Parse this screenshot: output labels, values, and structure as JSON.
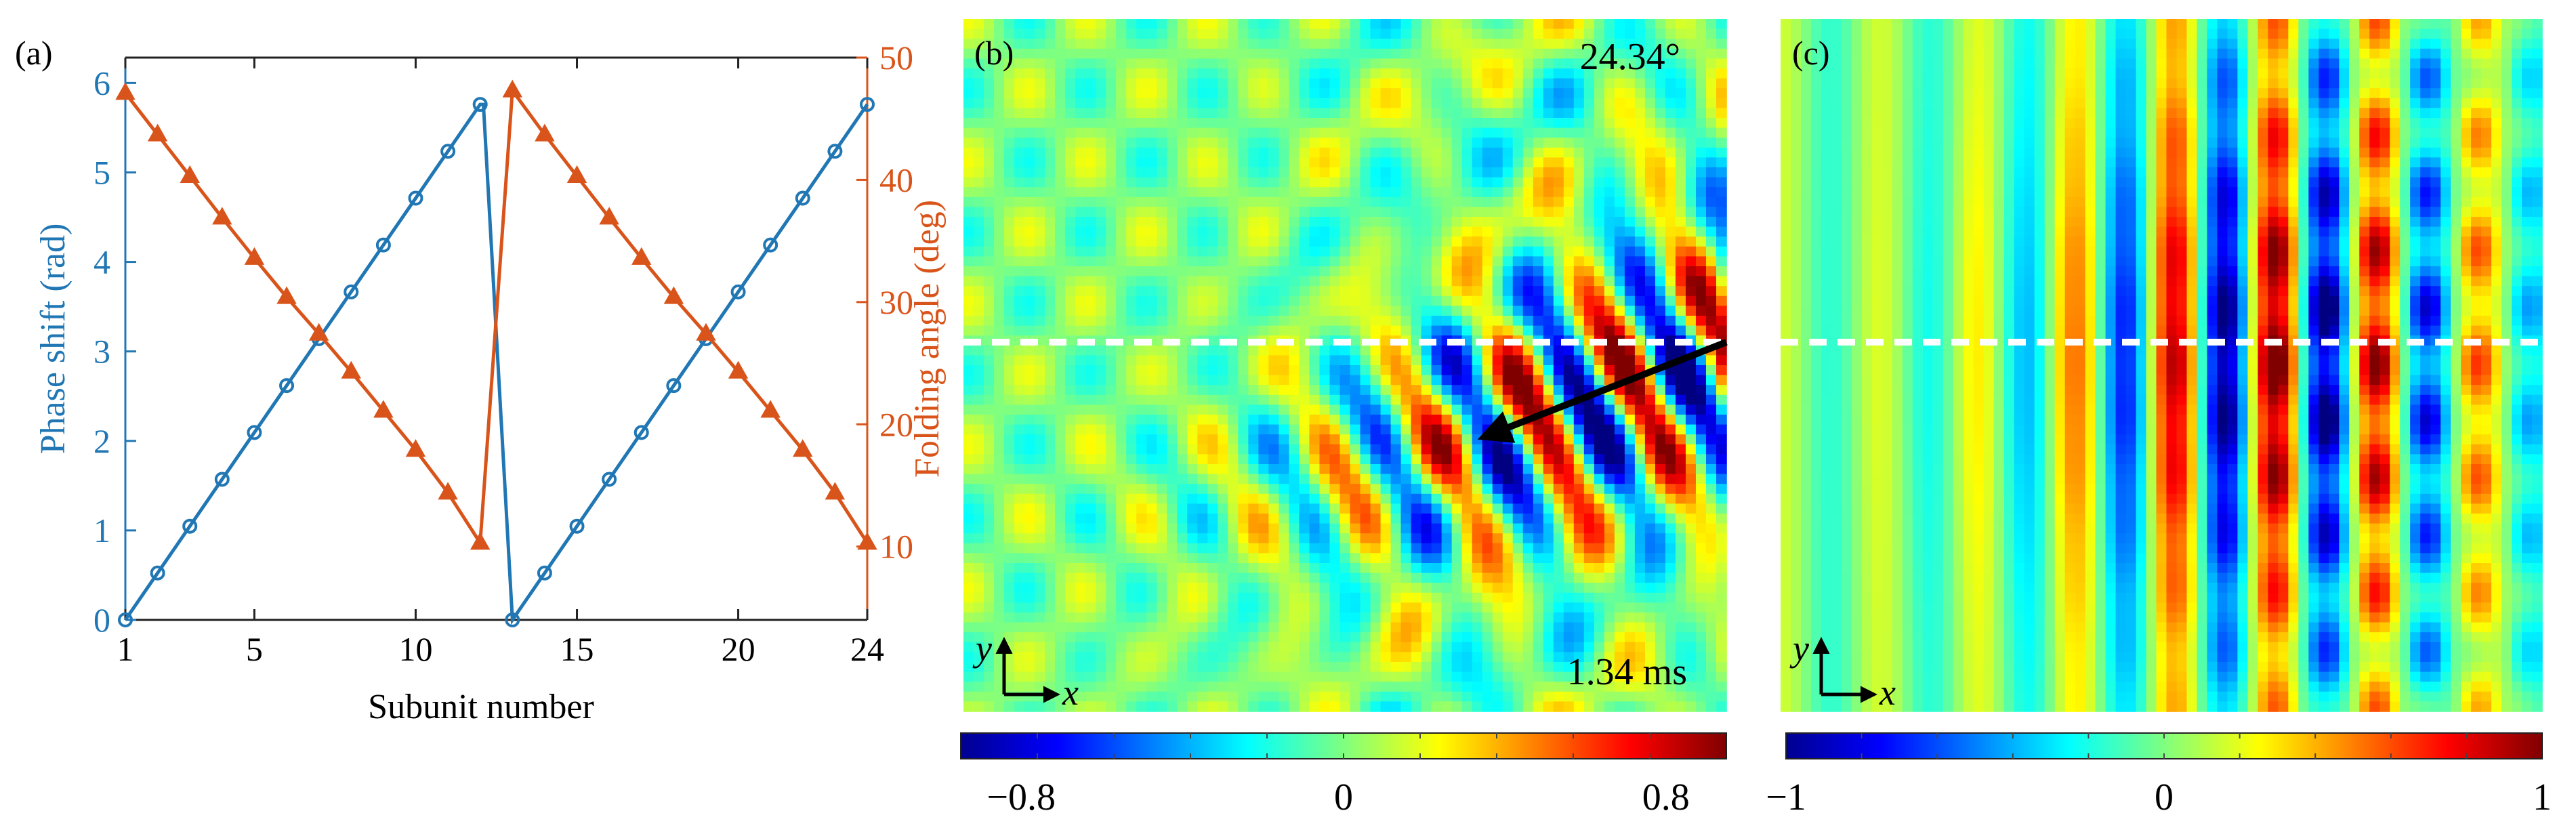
{
  "colors": {
    "phase": "#2077b4",
    "angle": "#d9541a",
    "arrow": "#000000",
    "dash": "#ffffff"
  },
  "chart_data": [
    {
      "id": "a",
      "type": "line",
      "panel_label": "(a)",
      "xlabel": "Subunit number",
      "ylabel_left": "Phase shift (rad)",
      "ylabel_right": "Folding angle (deg)",
      "xlim": [
        1,
        24
      ],
      "ylim_left": [
        0,
        6.283
      ],
      "ylim_right": [
        4,
        50
      ],
      "xticks": [
        "1",
        "5",
        "10",
        "15",
        "20",
        "24"
      ],
      "xtick_values": [
        1,
        5,
        10,
        15,
        20,
        24
      ],
      "yticks_left": [
        "0",
        "1",
        "2",
        "3",
        "4",
        "5",
        "6"
      ],
      "yticks_right": [
        "10",
        "20",
        "30",
        "40",
        "50"
      ],
      "series": [
        {
          "name": "Phase shift",
          "axis": "left",
          "marker": "circle",
          "x": [
            1,
            2,
            3,
            4,
            5,
            6,
            7,
            8,
            9,
            10,
            11,
            12,
            12.1,
            13,
            14,
            15,
            16,
            17,
            18,
            19,
            20,
            21,
            22,
            23,
            24
          ],
          "values": [
            0,
            0.524,
            1.047,
            1.571,
            2.094,
            2.618,
            3.142,
            3.665,
            4.189,
            4.712,
            5.236,
            5.76,
            5.76,
            0,
            0.524,
            1.047,
            1.571,
            2.094,
            2.618,
            3.142,
            3.665,
            4.189,
            4.712,
            5.236,
            5.76
          ]
        },
        {
          "name": "Folding angle",
          "axis": "right",
          "marker": "triangle",
          "x": [
            1,
            2,
            3,
            4,
            5,
            6,
            7,
            8,
            9,
            10,
            11,
            12,
            13,
            14,
            15,
            16,
            17,
            18,
            19,
            20,
            21,
            22,
            23,
            24
          ],
          "values": [
            47.1,
            43.7,
            40.3,
            36.9,
            33.6,
            30.4,
            27.4,
            24.3,
            21.1,
            17.9,
            14.4,
            10.3,
            47.3,
            43.7,
            40.3,
            36.9,
            33.6,
            30.4,
            27.4,
            24.3,
            21.1,
            17.9,
            14.4,
            10.3
          ]
        }
      ]
    },
    {
      "id": "b",
      "type": "heatmap",
      "panel_label": "(b)",
      "angle_label": "24.34°",
      "time_label": "1.34 ms",
      "axis_x": "x",
      "axis_y": "y",
      "colorbar_ticks": [
        "−0.8",
        "0",
        "0.8"
      ],
      "colorbar_tick_values": [
        -0.8,
        0,
        0.8
      ],
      "range": [
        -0.95,
        0.95
      ]
    },
    {
      "id": "c",
      "type": "heatmap",
      "panel_label": "(c)",
      "axis_x": "x",
      "axis_y": "y",
      "colorbar_ticks": [
        "−1",
        "0",
        "1"
      ],
      "colorbar_tick_values": [
        -1,
        0,
        1
      ],
      "range": [
        -1,
        1
      ]
    }
  ]
}
